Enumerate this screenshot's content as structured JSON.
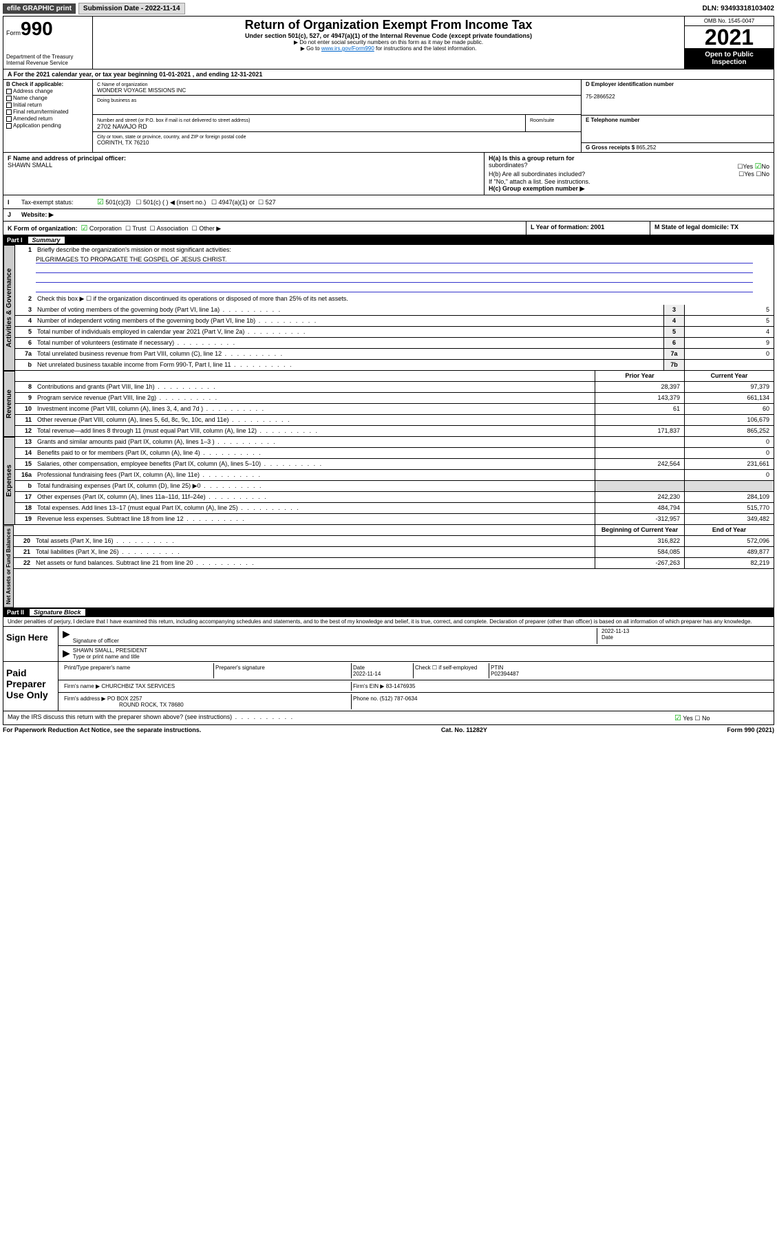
{
  "top": {
    "efile": "efile GRAPHIC print",
    "submission": "Submission Date - 2022-11-14",
    "dln": "DLN: 93493318103402"
  },
  "header": {
    "form_label": "Form",
    "form_num": "990",
    "dept": "Department of the Treasury",
    "irs": "Internal Revenue Service",
    "title": "Return of Organization Exempt From Income Tax",
    "sub1": "Under section 501(c), 527, or 4947(a)(1) of the Internal Revenue Code (except private foundations)",
    "sub2": "▶ Do not enter social security numbers on this form as it may be made public.",
    "sub3_pre": "▶ Go to ",
    "sub3_link": "www.irs.gov/Form990",
    "sub3_post": " for instructions and the latest information.",
    "omb": "OMB No. 1545-0047",
    "year": "2021",
    "open": "Open to Public",
    "inspection": "Inspection"
  },
  "row_a": "A For the 2021 calendar year, or tax year beginning 01-01-2021   , and ending 12-31-2021",
  "section_b": {
    "label": "B Check if applicable:",
    "checks": [
      "Address change",
      "Name change",
      "Initial return",
      "Final return/terminated",
      "Amended return",
      "Application pending"
    ],
    "c_label": "C Name of organization",
    "c_name": "WONDER VOYAGE MISSIONS INC",
    "dba": "Doing business as",
    "street_label": "Number and street (or P.O. box if mail is not delivered to street address)",
    "street": "2702 NAVAJO RD",
    "room_label": "Room/suite",
    "city_label": "City or town, state or province, country, and ZIP or foreign postal code",
    "city": "CORINTH, TX  76210",
    "d_label": "D Employer identification number",
    "d_val": "75-2866522",
    "e_label": "E Telephone number",
    "g_label": "G Gross receipts $",
    "g_val": "865,252"
  },
  "section_f": {
    "f_label": "F Name and address of principal officer:",
    "f_name": "SHAWN SMALL",
    "ha": "H(a)  Is this a group return for",
    "ha2": "subordinates?",
    "hb": "H(b)  Are all subordinates included?",
    "hb_note": "If \"No,\" attach a list. See instructions.",
    "hc": "H(c)  Group exemption number ▶",
    "yes": "Yes",
    "no": "No"
  },
  "tax_exempt": {
    "i": "I",
    "label": "Tax-exempt status:",
    "opt1": "501(c)(3)",
    "opt2": "501(c) (  ) ◀ (insert no.)",
    "opt3": "4947(a)(1) or",
    "opt4": "527"
  },
  "website": {
    "j": "J",
    "label": "Website: ▶"
  },
  "form_org": {
    "k": "K Form of organization:",
    "opts": [
      "Corporation",
      "Trust",
      "Association",
      "Other ▶"
    ],
    "l": "L Year of formation: 2001",
    "m": "M State of legal domicile: TX"
  },
  "part1": {
    "label": "Part I",
    "title": "Summary"
  },
  "governance": {
    "label": "Activities & Governance",
    "l1": "Briefly describe the organization's mission or most significant activities:",
    "l1_text": "PILGRIMAGES TO PROPAGATE THE GOSPEL OF JESUS CHRIST.",
    "l2": "Check this box ▶ ☐  if the organization discontinued its operations or disposed of more than 25% of its net assets.",
    "lines": [
      {
        "n": "3",
        "t": "Number of voting members of the governing body (Part VI, line 1a)",
        "b": "3",
        "v": "5"
      },
      {
        "n": "4",
        "t": "Number of independent voting members of the governing body (Part VI, line 1b)",
        "b": "4",
        "v": "5"
      },
      {
        "n": "5",
        "t": "Total number of individuals employed in calendar year 2021 (Part V, line 2a)",
        "b": "5",
        "v": "4"
      },
      {
        "n": "6",
        "t": "Total number of volunteers (estimate if necessary)",
        "b": "6",
        "v": "9"
      },
      {
        "n": "7a",
        "t": "Total unrelated business revenue from Part VIII, column (C), line 12",
        "b": "7a",
        "v": "0"
      },
      {
        "n": "b",
        "t": "Net unrelated business taxable income from Form 990-T, Part I, line 11",
        "b": "7b",
        "v": ""
      }
    ]
  },
  "revenue": {
    "label": "Revenue",
    "h1": "Prior Year",
    "h2": "Current Year",
    "lines": [
      {
        "n": "8",
        "t": "Contributions and grants (Part VIII, line 1h)",
        "p": "28,397",
        "c": "97,379"
      },
      {
        "n": "9",
        "t": "Program service revenue (Part VIII, line 2g)",
        "p": "143,379",
        "c": "661,134"
      },
      {
        "n": "10",
        "t": "Investment income (Part VIII, column (A), lines 3, 4, and 7d )",
        "p": "61",
        "c": "60"
      },
      {
        "n": "11",
        "t": "Other revenue (Part VIII, column (A), lines 5, 6d, 8c, 9c, 10c, and 11e)",
        "p": "",
        "c": "106,679"
      },
      {
        "n": "12",
        "t": "Total revenue—add lines 8 through 11 (must equal Part VIII, column (A), line 12)",
        "p": "171,837",
        "c": "865,252"
      }
    ]
  },
  "expenses": {
    "label": "Expenses",
    "lines": [
      {
        "n": "13",
        "t": "Grants and similar amounts paid (Part IX, column (A), lines 1–3 )",
        "p": "",
        "c": "0"
      },
      {
        "n": "14",
        "t": "Benefits paid to or for members (Part IX, column (A), line 4)",
        "p": "",
        "c": "0"
      },
      {
        "n": "15",
        "t": "Salaries, other compensation, employee benefits (Part IX, column (A), lines 5–10)",
        "p": "242,564",
        "c": "231,661"
      },
      {
        "n": "16a",
        "t": "Professional fundraising fees (Part IX, column (A), line 11e)",
        "p": "",
        "c": "0"
      },
      {
        "n": "b",
        "t": "Total fundraising expenses (Part IX, column (D), line 25) ▶0",
        "p": "",
        "c": "",
        "gray": true
      },
      {
        "n": "17",
        "t": "Other expenses (Part IX, column (A), lines 11a–11d, 11f–24e)",
        "p": "242,230",
        "c": "284,109"
      },
      {
        "n": "18",
        "t": "Total expenses. Add lines 13–17 (must equal Part IX, column (A), line 25)",
        "p": "484,794",
        "c": "515,770"
      },
      {
        "n": "19",
        "t": "Revenue less expenses. Subtract line 18 from line 12",
        "p": "-312,957",
        "c": "349,482"
      }
    ]
  },
  "netassets": {
    "label": "Net Assets or Fund Balances",
    "h1": "Beginning of Current Year",
    "h2": "End of Year",
    "lines": [
      {
        "n": "20",
        "t": "Total assets (Part X, line 16)",
        "p": "316,822",
        "c": "572,096"
      },
      {
        "n": "21",
        "t": "Total liabilities (Part X, line 26)",
        "p": "584,085",
        "c": "489,877"
      },
      {
        "n": "22",
        "t": "Net assets or fund balances. Subtract line 21 from line 20",
        "p": "-267,263",
        "c": "82,219"
      }
    ]
  },
  "part2": {
    "label": "Part II",
    "title": "Signature Block"
  },
  "penalty": "Under penalties of perjury, I declare that I have examined this return, including accompanying schedules and statements, and to the best of my knowledge and belief, it is true, correct, and complete. Declaration of preparer (other than officer) is based on all information of which preparer has any knowledge.",
  "sign": {
    "label": "Sign Here",
    "sig_officer": "Signature of officer",
    "date": "Date",
    "date_val": "2022-11-13",
    "name": "SHAWN SMALL, PRESIDENT",
    "name_label": "Type or print name and title"
  },
  "preparer": {
    "label": "Paid Preparer Use Only",
    "col1": "Print/Type preparer's name",
    "col2": "Preparer's signature",
    "col3": "Date",
    "col3_val": "2022-11-14",
    "col4": "Check ☐ if self-employed",
    "col5": "PTIN",
    "col5_val": "P02394487",
    "firm_name_label": "Firm's name    ▶",
    "firm_name": "CHURCHBIZ TAX SERVICES",
    "firm_ein_label": "Firm's EIN ▶",
    "firm_ein": "83-1476935",
    "firm_addr_label": "Firm's address ▶",
    "firm_addr1": "PO BOX 2257",
    "firm_addr2": "ROUND ROCK, TX  78680",
    "phone_label": "Phone no.",
    "phone": "(512) 787-0634"
  },
  "discuss": "May the IRS discuss this return with the preparer shown above? (see instructions)",
  "footer": {
    "left": "For Paperwork Reduction Act Notice, see the separate instructions.",
    "mid": "Cat. No. 11282Y",
    "right": "Form 990 (2021)"
  }
}
